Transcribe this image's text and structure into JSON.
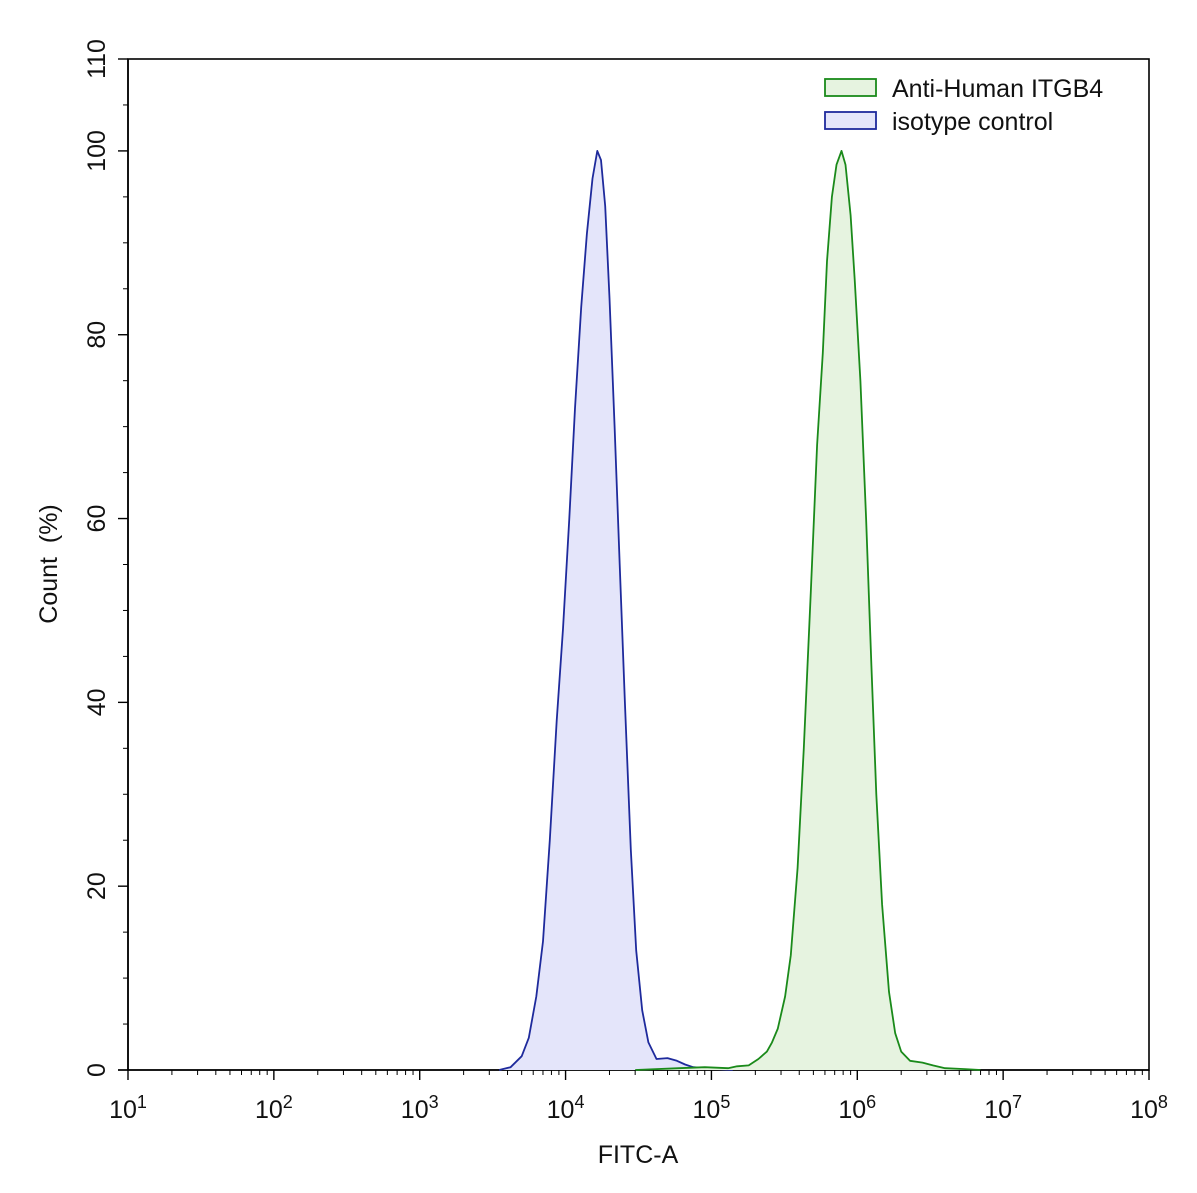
{
  "chart_data": {
    "type": "area",
    "xlabel": "FITC-A",
    "ylabel": "Count  (%)",
    "x_scale": "log",
    "xlim": [
      10,
      100000000
    ],
    "ylim": [
      0,
      110
    ],
    "x_ticks": [
      {
        "value": 10,
        "base": "10",
        "exp": "1"
      },
      {
        "value": 100,
        "base": "10",
        "exp": "2"
      },
      {
        "value": 1000,
        "base": "10",
        "exp": "3"
      },
      {
        "value": 10000,
        "base": "10",
        "exp": "4"
      },
      {
        "value": 100000,
        "base": "10",
        "exp": "5"
      },
      {
        "value": 1000000,
        "base": "10",
        "exp": "6"
      },
      {
        "value": 10000000,
        "base": "10",
        "exp": "7"
      },
      {
        "value": 100000000,
        "base": "10",
        "exp": "8"
      }
    ],
    "y_ticks": [
      {
        "value": 0,
        "label": "0"
      },
      {
        "value": 20,
        "label": "20"
      },
      {
        "value": 40,
        "label": "40"
      },
      {
        "value": 60,
        "label": "60"
      },
      {
        "value": 80,
        "label": "80"
      },
      {
        "value": 100,
        "label": "100"
      },
      {
        "value": 110,
        "label": "110"
      }
    ],
    "grid": false,
    "legend_position": "top-right",
    "series": [
      {
        "name": "Anti-Human ITGB4",
        "stroke": "#1a8a1a",
        "fill": "#e6f3e0",
        "points": [
          [
            30000,
            0
          ],
          [
            60000,
            0.2
          ],
          [
            90000,
            0.3
          ],
          [
            130000,
            0.2
          ],
          [
            150000,
            0.4
          ],
          [
            180000,
            0.5
          ],
          [
            210000,
            1.2
          ],
          [
            240000,
            2.0
          ],
          [
            260000,
            3.0
          ],
          [
            285000,
            4.5
          ],
          [
            320000,
            8.0
          ],
          [
            350000,
            12.5
          ],
          [
            390000,
            22.0
          ],
          [
            430000,
            35.0
          ],
          [
            480000,
            52.0
          ],
          [
            530000,
            68.0
          ],
          [
            580000,
            78.0
          ],
          [
            620000,
            88.0
          ],
          [
            670000,
            95.0
          ],
          [
            720000,
            98.5
          ],
          [
            780000,
            100.0
          ],
          [
            830000,
            98.5
          ],
          [
            900000,
            93.0
          ],
          [
            960000,
            86.0
          ],
          [
            1050000,
            75.0
          ],
          [
            1150000,
            60.0
          ],
          [
            1250000,
            44.0
          ],
          [
            1350000,
            30.0
          ],
          [
            1480000,
            18.0
          ],
          [
            1650000,
            8.5
          ],
          [
            1820000,
            4.0
          ],
          [
            2000000,
            2.0
          ],
          [
            2300000,
            1.0
          ],
          [
            2800000,
            0.8
          ],
          [
            3300000,
            0.5
          ],
          [
            4000000,
            0.2
          ],
          [
            5500000,
            0.1
          ],
          [
            7000000,
            0
          ]
        ]
      },
      {
        "name": "isotype control",
        "stroke": "#1e2a9c",
        "fill": "#e4e5fa",
        "points": [
          [
            3500,
            0
          ],
          [
            4200,
            0.3
          ],
          [
            5000,
            1.5
          ],
          [
            5600,
            3.5
          ],
          [
            6300,
            8.0
          ],
          [
            7000,
            14.0
          ],
          [
            7800,
            25.0
          ],
          [
            8700,
            38.0
          ],
          [
            9600,
            48.0
          ],
          [
            10600,
            60.0
          ],
          [
            11600,
            72.0
          ],
          [
            12800,
            83.0
          ],
          [
            14000,
            91.0
          ],
          [
            15300,
            97.0
          ],
          [
            16500,
            100.0
          ],
          [
            17500,
            99.0
          ],
          [
            18700,
            94.0
          ],
          [
            20000,
            84.0
          ],
          [
            21700,
            70.0
          ],
          [
            23500,
            55.0
          ],
          [
            25500,
            40.0
          ],
          [
            28000,
            24.0
          ],
          [
            30500,
            13.0
          ],
          [
            33500,
            6.5
          ],
          [
            37000,
            3.0
          ],
          [
            42000,
            1.2
          ],
          [
            50000,
            1.3
          ],
          [
            58000,
            1.0
          ],
          [
            66000,
            0.6
          ],
          [
            75000,
            0.3
          ],
          [
            90000,
            0.2
          ],
          [
            110000,
            0.1
          ],
          [
            140000,
            0
          ]
        ]
      }
    ]
  }
}
